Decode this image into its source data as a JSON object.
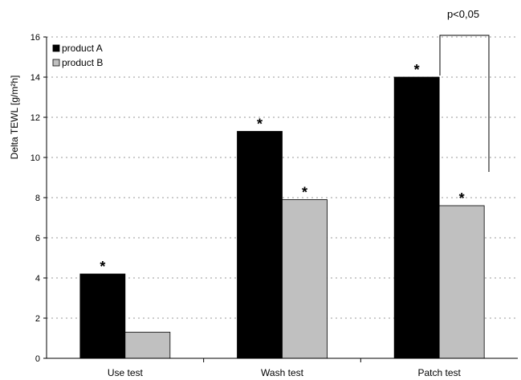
{
  "chart_data": {
    "type": "bar",
    "categories": [
      "Use test",
      "Wash test",
      "Patch test"
    ],
    "series": [
      {
        "name": "product A",
        "values": [
          4.2,
          11.3,
          14.0
        ],
        "color": "#000000",
        "markers": [
          "*",
          "*",
          "*"
        ]
      },
      {
        "name": "product B",
        "values": [
          1.3,
          7.9,
          7.6
        ],
        "color": "#c0c0c0",
        "markers": [
          "",
          "*",
          "*"
        ]
      }
    ],
    "ylabel": "Delta TEWL [g/m²h]",
    "ylim": [
      0,
      16
    ],
    "yticks": [
      "0",
      "2",
      "4",
      "6",
      "8",
      "10",
      "12",
      "14",
      "16"
    ],
    "grid": true,
    "legend_position": "top-left",
    "annotation": {
      "text": "p<0,05",
      "category": "Patch test"
    }
  }
}
